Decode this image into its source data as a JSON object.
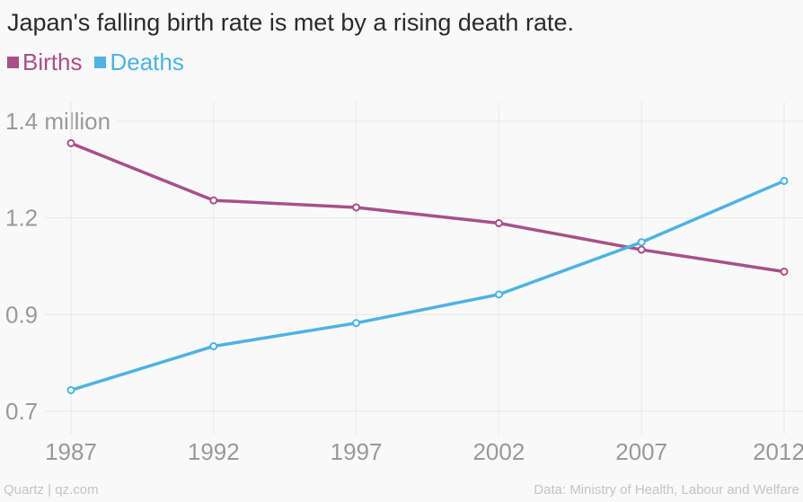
{
  "chart_data": {
    "type": "line",
    "title": "Japan's falling birth rate is met by a rising death rate.",
    "x": [
      1987,
      1992,
      1997,
      2002,
      2007,
      2012
    ],
    "series": [
      {
        "name": "Births",
        "color": "#a8508a",
        "values": [
          1.347,
          1.209,
          1.192,
          1.154,
          1.09,
          1.037
        ]
      },
      {
        "name": "Deaths",
        "color": "#4fb2e3",
        "values": [
          0.751,
          0.857,
          0.913,
          0.982,
          1.108,
          1.256
        ]
      }
    ],
    "yticks": [
      {
        "value": 1.4,
        "label": "1.4 million"
      },
      {
        "value": 1.1667,
        "label": "1.2"
      },
      {
        "value": 0.9333,
        "label": "0.9"
      },
      {
        "value": 0.7,
        "label": "0.7"
      }
    ],
    "xticks": [
      "1987",
      "1992",
      "1997",
      "2002",
      "2007",
      "2012"
    ],
    "ylim": [
      0.7,
      1.4
    ],
    "xlim": [
      1987,
      2012
    ],
    "unit": "million",
    "grid": true,
    "legend": "top-left"
  },
  "footer": {
    "source_left": "Quartz | qz.com",
    "source_right": "Data: Ministry of Health, Labour and Welfare"
  }
}
